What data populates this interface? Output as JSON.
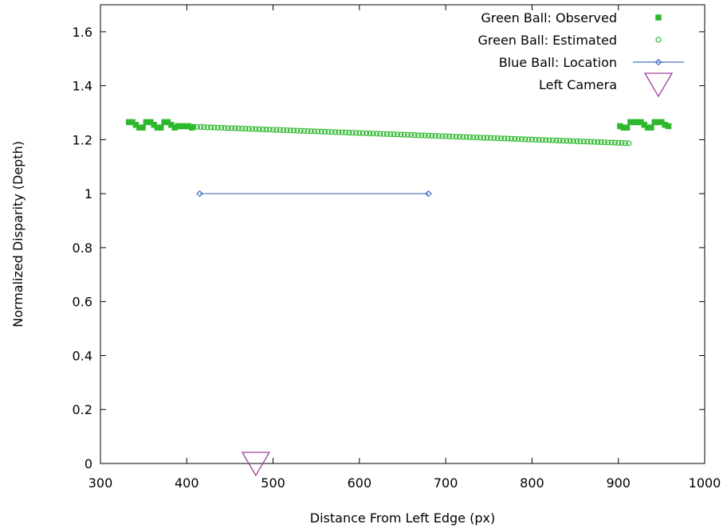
{
  "chart_data": {
    "type": "scatter",
    "xlabel": "Distance From Left Edge (px)",
    "ylabel": "Normalized Disparity (Depth)",
    "xlim": [
      300,
      1000
    ],
    "ylim": [
      0,
      1.7
    ],
    "x_ticks": [
      300,
      400,
      500,
      600,
      700,
      800,
      900,
      1000
    ],
    "x_tick_labels": [
      "300",
      "400",
      "500",
      "600",
      "700",
      "800",
      "900",
      "1000"
    ],
    "y_ticks": [
      0,
      0.2,
      0.4,
      0.6,
      0.8,
      1,
      1.2,
      1.4,
      1.6
    ],
    "y_tick_labels": [
      "0",
      "0.2",
      "0.4",
      "0.6",
      "0.8",
      "1",
      "1.2",
      "1.4",
      "1.6"
    ],
    "grid": false,
    "legend_position": "top-right",
    "series": [
      {
        "name": "Green Ball: Observed",
        "style": "filled-square",
        "color": "#2eb82e",
        "points": [
          [
            333,
            1.265
          ],
          [
            337,
            1.265
          ],
          [
            341,
            1.255
          ],
          [
            345,
            1.245
          ],
          [
            349,
            1.245
          ],
          [
            353,
            1.265
          ],
          [
            358,
            1.265
          ],
          [
            362,
            1.255
          ],
          [
            366,
            1.245
          ],
          [
            370,
            1.245
          ],
          [
            374,
            1.265
          ],
          [
            378,
            1.265
          ],
          [
            382,
            1.255
          ],
          [
            386,
            1.245
          ],
          [
            390,
            1.25
          ],
          [
            394,
            1.25
          ],
          [
            398,
            1.25
          ],
          [
            402,
            1.25
          ],
          [
            406,
            1.245
          ],
          [
            902,
            1.25
          ],
          [
            906,
            1.245
          ],
          [
            910,
            1.245
          ],
          [
            914,
            1.265
          ],
          [
            918,
            1.265
          ],
          [
            922,
            1.265
          ],
          [
            926,
            1.265
          ],
          [
            930,
            1.255
          ],
          [
            934,
            1.245
          ],
          [
            938,
            1.245
          ],
          [
            942,
            1.265
          ],
          [
            946,
            1.265
          ],
          [
            950,
            1.265
          ],
          [
            954,
            1.255
          ],
          [
            958,
            1.25
          ]
        ]
      },
      {
        "name": "Green Ball: Estimated",
        "style": "open-circle",
        "color": "#2eb82e",
        "x_start": 408,
        "x_end": 910,
        "x_step": 4,
        "y_start": 1.248,
        "y_end": 1.187
      },
      {
        "name": "Blue Ball: Location",
        "style": "line-open-diamond",
        "color": "#4472c4",
        "points": [
          [
            415,
            1
          ],
          [
            680,
            1
          ]
        ]
      },
      {
        "name": "Left Camera",
        "style": "open-triangle-down",
        "color": "#a040a0",
        "points": [
          [
            480,
            0
          ]
        ]
      }
    ]
  }
}
